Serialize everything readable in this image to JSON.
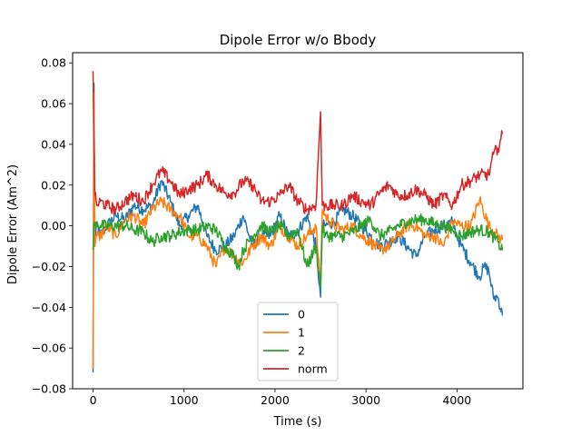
{
  "chart_data": {
    "type": "line",
    "title": "Dipole Error w/o Bbody",
    "xlabel": "Time (s)",
    "ylabel": "Dipole Error (Am^2)",
    "xlim": [
      -225,
      4725
    ],
    "ylim": [
      -0.08,
      0.085
    ],
    "xticks": [
      0,
      1000,
      2000,
      3000,
      4000
    ],
    "xtick_labels": [
      "0",
      "1000",
      "2000",
      "3000",
      "4000"
    ],
    "yticks": [
      -0.08,
      -0.06,
      -0.04,
      -0.02,
      0.0,
      0.02,
      0.04,
      0.06,
      0.08
    ],
    "ytick_labels": [
      "−0.08",
      "−0.06",
      "−0.04",
      "−0.02",
      "0.00",
      "0.02",
      "0.04",
      "0.06",
      "0.08"
    ],
    "grid": false,
    "legend": {
      "placement": "lower-center",
      "entries": [
        "0",
        "1",
        "2",
        "norm"
      ]
    },
    "series": [
      {
        "name": "0",
        "color": "#1f77b4",
        "x": [
          0,
          10,
          20,
          40,
          80,
          150,
          250,
          350,
          450,
          550,
          650,
          750,
          850,
          950,
          1050,
          1150,
          1250,
          1350,
          1450,
          1550,
          1650,
          1750,
          1850,
          1950,
          2050,
          2150,
          2250,
          2350,
          2450,
          2500,
          2520,
          2550,
          2650,
          2750,
          2850,
          2950,
          3050,
          3150,
          3250,
          3350,
          3450,
          3550,
          3650,
          3750,
          3850,
          3950,
          4000,
          4050,
          4150,
          4250,
          4300,
          4350,
          4400,
          4450,
          4500
        ],
        "y": [
          -0.072,
          0.07,
          -0.01,
          0.0,
          -0.005,
          0.0,
          0.005,
          0.003,
          0.01,
          0.008,
          0.01,
          0.022,
          0.012,
          0.0,
          0.005,
          0.01,
          -0.005,
          -0.012,
          -0.01,
          -0.005,
          0.005,
          -0.01,
          -0.005,
          -0.005,
          0.005,
          -0.005,
          -0.003,
          0.005,
          -0.01,
          -0.035,
          0.0,
          0.0,
          0.002,
          0.008,
          0.005,
          0.0,
          -0.005,
          -0.01,
          -0.008,
          -0.005,
          -0.01,
          -0.015,
          -0.005,
          -0.002,
          0.0,
          0.002,
          -0.005,
          -0.01,
          -0.018,
          -0.025,
          -0.02,
          -0.022,
          -0.035,
          -0.035,
          -0.044
        ]
      },
      {
        "name": "1",
        "color": "#ff7f0e",
        "x": [
          0,
          10,
          20,
          40,
          80,
          150,
          250,
          350,
          450,
          550,
          650,
          750,
          850,
          950,
          1050,
          1150,
          1250,
          1350,
          1450,
          1550,
          1650,
          1750,
          1850,
          1950,
          2050,
          2150,
          2250,
          2350,
          2450,
          2500,
          2520,
          2550,
          2650,
          2750,
          2850,
          2950,
          3050,
          3150,
          3250,
          3350,
          3450,
          3550,
          3650,
          3750,
          3850,
          3950,
          4050,
          4150,
          4250,
          4350,
          4450,
          4500
        ],
        "y": [
          -0.07,
          0.065,
          -0.01,
          -0.005,
          -0.005,
          0.0,
          -0.005,
          0.003,
          0.005,
          0.0,
          0.008,
          0.012,
          0.008,
          0.005,
          -0.005,
          -0.005,
          -0.01,
          -0.02,
          -0.01,
          -0.015,
          -0.018,
          -0.01,
          -0.005,
          -0.01,
          0.0,
          -0.005,
          -0.01,
          -0.005,
          0.0,
          -0.03,
          0.008,
          0.005,
          0.0,
          -0.002,
          0.0,
          -0.005,
          -0.008,
          -0.012,
          -0.01,
          -0.005,
          0.0,
          0.0,
          -0.005,
          -0.005,
          -0.01,
          0.002,
          0.0,
          0.0,
          0.013,
          0.0,
          -0.005,
          -0.007
        ]
      },
      {
        "name": "2",
        "color": "#2ca02c",
        "x": [
          0,
          10,
          20,
          40,
          80,
          150,
          250,
          350,
          450,
          550,
          650,
          750,
          850,
          950,
          1050,
          1150,
          1250,
          1350,
          1450,
          1550,
          1600,
          1650,
          1750,
          1850,
          1950,
          2050,
          2150,
          2250,
          2350,
          2450,
          2500,
          2520,
          2550,
          2650,
          2750,
          2850,
          2950,
          3050,
          3150,
          3250,
          3350,
          3450,
          3550,
          3650,
          3750,
          3850,
          3950,
          4050,
          4150,
          4250,
          4350,
          4450,
          4500
        ],
        "y": [
          -0.012,
          0.0,
          0.0,
          0.002,
          0.0,
          0.0,
          0.0,
          0.0,
          -0.002,
          -0.003,
          -0.008,
          -0.005,
          -0.005,
          -0.003,
          -0.002,
          -0.002,
          0.0,
          -0.002,
          -0.01,
          -0.015,
          -0.02,
          -0.012,
          -0.005,
          0.0,
          -0.003,
          0.0,
          -0.005,
          -0.002,
          -0.02,
          -0.01,
          -0.03,
          0.0,
          -0.005,
          -0.005,
          -0.005,
          -0.003,
          0.0,
          0.003,
          -0.005,
          -0.003,
          0.0,
          0.002,
          0.003,
          0.003,
          0.001,
          0.0,
          -0.002,
          -0.005,
          -0.003,
          -0.002,
          -0.003,
          -0.008,
          -0.012
        ]
      },
      {
        "name": "norm",
        "color": "#d62728",
        "x": [
          0,
          10,
          20,
          40,
          80,
          150,
          250,
          350,
          450,
          550,
          650,
          750,
          850,
          950,
          1050,
          1150,
          1250,
          1350,
          1450,
          1550,
          1650,
          1750,
          1850,
          1950,
          2050,
          2150,
          2250,
          2350,
          2450,
          2500,
          2520,
          2550,
          2650,
          2750,
          2850,
          2950,
          3050,
          3150,
          3250,
          3350,
          3450,
          3550,
          3650,
          3750,
          3850,
          3950,
          4050,
          4150,
          4250,
          4350,
          4400,
          4450,
          4500
        ],
        "y": [
          0.076,
          0.04,
          0.015,
          0.01,
          0.012,
          0.01,
          0.008,
          0.012,
          0.015,
          0.012,
          0.02,
          0.027,
          0.022,
          0.015,
          0.018,
          0.02,
          0.025,
          0.02,
          0.016,
          0.016,
          0.022,
          0.02,
          0.012,
          0.012,
          0.015,
          0.02,
          0.012,
          0.008,
          0.01,
          0.056,
          0.01,
          0.01,
          0.01,
          0.01,
          0.015,
          0.012,
          0.01,
          0.016,
          0.02,
          0.015,
          0.015,
          0.018,
          0.015,
          0.01,
          0.015,
          0.01,
          0.02,
          0.022,
          0.025,
          0.025,
          0.035,
          0.038,
          0.045
        ]
      }
    ]
  }
}
